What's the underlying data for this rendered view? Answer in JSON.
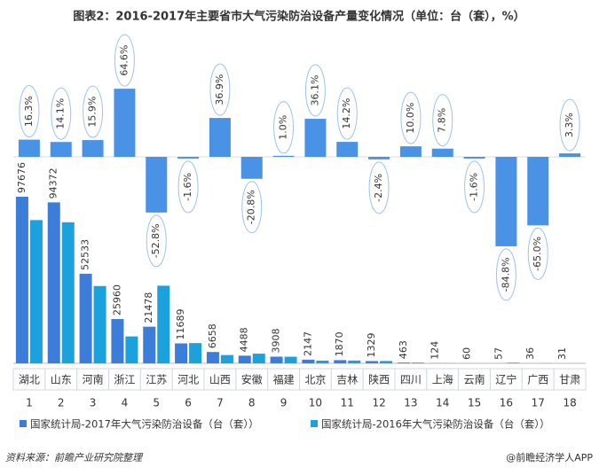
{
  "chart_data": {
    "type": "bar",
    "title": "图表2：2016-2017年主要省市大气污染防治设备产量变化情况（单位：台（套），%）",
    "categories": [
      "湖北",
      "山东",
      "河南",
      "浙江",
      "江苏",
      "河北",
      "山西",
      "安徽",
      "福建",
      "北京",
      "吉林",
      "陕西",
      "四川",
      "上海",
      "云南",
      "辽宁",
      "广西",
      "甘肃"
    ],
    "category_numbers": [
      1,
      2,
      3,
      4,
      5,
      6,
      7,
      8,
      9,
      10,
      11,
      12,
      13,
      14,
      15,
      16,
      17,
      18
    ],
    "series": [
      {
        "name": "国家统计局-2017年大气污染防治设备（台（套））",
        "color": "#3b7dd8",
        "values": [
          97676,
          94372,
          52533,
          25960,
          21478,
          11689,
          6658,
          4488,
          3908,
          2147,
          1870,
          1329,
          463,
          124,
          60,
          57,
          36,
          31
        ]
      },
      {
        "name": "国家统计局-2016年大气污染防治设备（台（套））",
        "color": "#1ba1dc",
        "values": [
          83986,
          82710,
          45326,
          15772,
          45504,
          11879,
          4863,
          5667,
          3869,
          1578,
          1637,
          1362,
          421,
          115,
          61,
          375,
          103,
          30
        ]
      },
      {
        "color": "#4a92e6",
        "axis": "y2",
        "values": [
          16.3,
          14.1,
          15.9,
          64.6,
          -52.8,
          -1.6,
          36.9,
          -20.8,
          1.0,
          36.1,
          14.2,
          -2.4,
          10.0,
          7.8,
          -1.6,
          -84.8,
          -65.0,
          3.3
        ],
        "value_labels": [
          "16.3%",
          "14.1%",
          "15.9%",
          "64.6%",
          "-52.8%",
          "-1.6%",
          "36.9%",
          "-20.8%",
          "1.0%",
          "36.1%",
          "14.2%",
          "-2.4%",
          "10.0%",
          "7.8%",
          "-1.6%",
          "-84.8%",
          "-65.0%",
          "3.3%"
        ]
      }
    ],
    "source": "资料来源：前瞻产业研究院整理",
    "credit": "@前瞻经济学人APP"
  }
}
